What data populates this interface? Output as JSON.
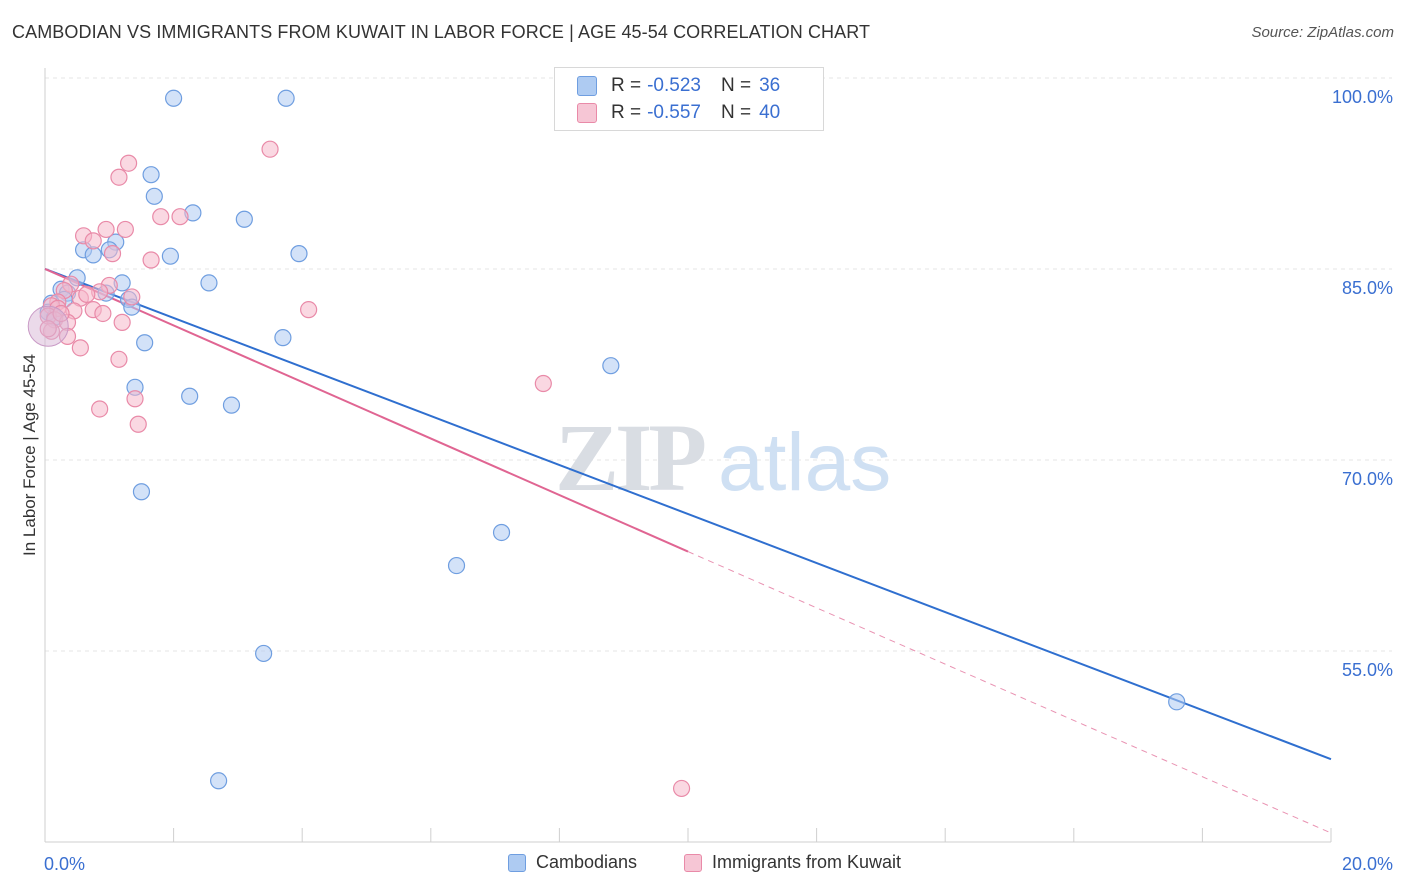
{
  "title": "CAMBODIAN VS IMMIGRANTS FROM KUWAIT IN LABOR FORCE | AGE 45-54 CORRELATION CHART",
  "source": "Source: ZipAtlas.com",
  "watermark": {
    "zip": "ZIP",
    "atlas": "atlas"
  },
  "legend_top": [
    {
      "r_label": "R =",
      "r_value": "-0.523",
      "n_label": "N =",
      "n_value": "36"
    },
    {
      "r_label": "R =",
      "r_value": "-0.557",
      "n_label": "N =",
      "n_value": "40"
    }
  ],
  "legend_bottom": [
    "Cambodians",
    "Immigrants from Kuwait"
  ],
  "colors": {
    "blue_fill": "#aecbf2",
    "blue_stroke": "#6f9ee0",
    "blue_line": "#2f6fcf",
    "pink_fill": "#f6b8cb",
    "pink_stroke": "#e98aa8",
    "pink_line": "#e06592",
    "axis_label": "#3a6fd1"
  },
  "chart_data": {
    "type": "scatter",
    "title": "CAMBODIAN VS IMMIGRANTS FROM KUWAIT IN LABOR FORCE | AGE 45-54 CORRELATION CHART",
    "xlabel": "",
    "ylabel": "In Labor Force | Age 45-54",
    "xlim": [
      0,
      20
    ],
    "ylim": [
      42.5,
      101.5
    ],
    "x_tick_labels": [
      "0.0%",
      "20.0%"
    ],
    "y_ticks": [
      55,
      70,
      85,
      100
    ],
    "y_tick_labels": [
      "55.0%",
      "70.0%",
      "85.0%",
      "100.0%"
    ],
    "grid": true,
    "series": [
      {
        "name": "Cambodians",
        "color": "blue",
        "points": [
          [
            2.0,
            99.9
          ],
          [
            3.75,
            99.9
          ],
          [
            1.65,
            93.9
          ],
          [
            1.7,
            92.2
          ],
          [
            2.3,
            90.9
          ],
          [
            3.1,
            90.4
          ],
          [
            1.1,
            88.6
          ],
          [
            0.6,
            88.0
          ],
          [
            1.0,
            88.0
          ],
          [
            0.75,
            87.6
          ],
          [
            1.95,
            87.5
          ],
          [
            3.95,
            87.7
          ],
          [
            0.5,
            85.8
          ],
          [
            2.55,
            85.4
          ],
          [
            1.2,
            85.4
          ],
          [
            0.25,
            84.9
          ],
          [
            0.35,
            84.6
          ],
          [
            0.95,
            84.6
          ],
          [
            1.3,
            84.1
          ],
          [
            0.3,
            84.1
          ],
          [
            0.1,
            83.8
          ],
          [
            1.35,
            83.5
          ],
          [
            0.05,
            83.1
          ],
          [
            0.15,
            82.7
          ],
          [
            1.55,
            80.7
          ],
          [
            3.7,
            81.1
          ],
          [
            8.8,
            78.9
          ],
          [
            1.4,
            77.2
          ],
          [
            2.25,
            76.5
          ],
          [
            2.9,
            75.8
          ],
          [
            1.5,
            69.0
          ],
          [
            7.1,
            65.8
          ],
          [
            6.4,
            63.2
          ],
          [
            3.4,
            56.3
          ],
          [
            17.6,
            52.5
          ],
          [
            2.7,
            46.3
          ]
        ],
        "trend": {
          "x": [
            0,
            20
          ],
          "y": [
            86.5,
            48.0
          ]
        }
      },
      {
        "name": "Immigrants from Kuwait",
        "color": "pink",
        "points": [
          [
            3.5,
            95.9
          ],
          [
            1.3,
            94.8
          ],
          [
            1.15,
            93.7
          ],
          [
            1.8,
            90.6
          ],
          [
            2.1,
            90.6
          ],
          [
            0.95,
            89.6
          ],
          [
            1.25,
            89.6
          ],
          [
            0.6,
            89.1
          ],
          [
            0.75,
            88.7
          ],
          [
            1.05,
            87.7
          ],
          [
            1.65,
            87.2
          ],
          [
            1.0,
            85.2
          ],
          [
            0.4,
            85.3
          ],
          [
            0.3,
            84.8
          ],
          [
            0.85,
            84.7
          ],
          [
            1.35,
            84.3
          ],
          [
            0.55,
            84.2
          ],
          [
            0.2,
            83.9
          ],
          [
            0.1,
            83.6
          ],
          [
            0.2,
            83.4
          ],
          [
            0.75,
            83.3
          ],
          [
            0.45,
            83.2
          ],
          [
            0.9,
            83.0
          ],
          [
            4.1,
            83.3
          ],
          [
            0.05,
            82.8
          ],
          [
            0.15,
            82.5
          ],
          [
            0.35,
            82.3
          ],
          [
            1.2,
            82.3
          ],
          [
            0.1,
            81.6
          ],
          [
            0.35,
            81.2
          ],
          [
            0.55,
            80.3
          ],
          [
            1.15,
            79.4
          ],
          [
            7.75,
            77.5
          ],
          [
            1.4,
            76.3
          ],
          [
            0.85,
            75.5
          ],
          [
            1.45,
            74.3
          ],
          [
            9.9,
            45.7
          ],
          [
            0.05,
            81.8
          ],
          [
            0.25,
            83.0
          ],
          [
            0.65,
            84.5
          ]
        ],
        "trend": {
          "x": [
            0,
            10
          ],
          "y": [
            86.5,
            64.3
          ]
        },
        "trend_extension": {
          "x": [
            10,
            20
          ],
          "y": [
            64.3,
            42.2
          ]
        }
      }
    ]
  }
}
